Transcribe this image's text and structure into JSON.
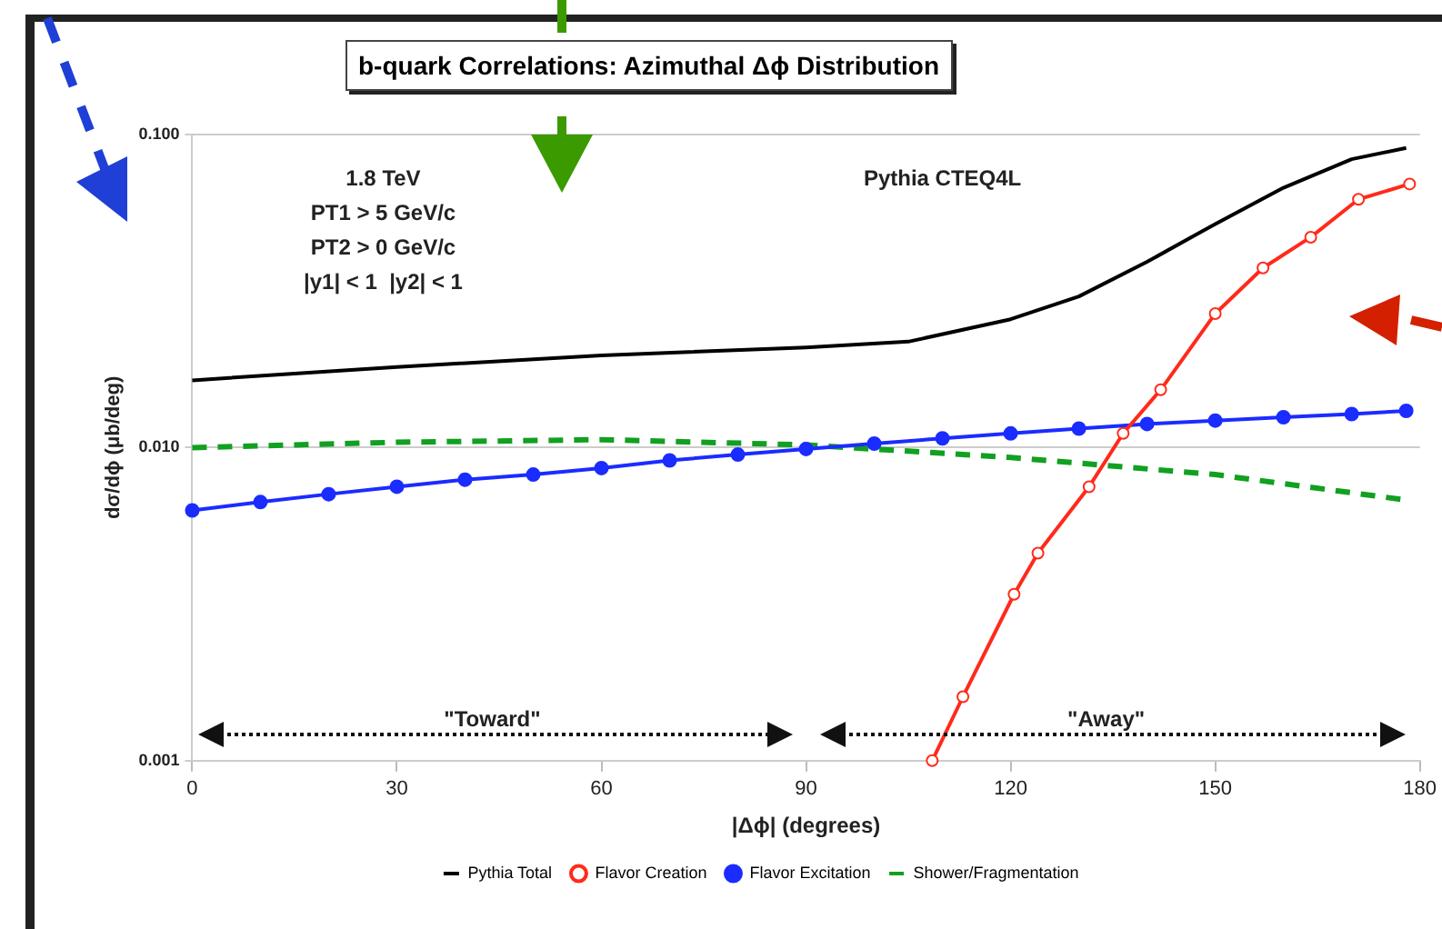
{
  "chart_data": {
    "type": "line",
    "title": "b-quark Correlations: Azimuthal Δϕ Distribution",
    "xlabel": "|Δϕ| (degrees)",
    "ylabel": "dσ/dϕ (μb/deg)",
    "xlim": [
      0,
      180
    ],
    "xticks": [
      0,
      30,
      60,
      90,
      120,
      150,
      180
    ],
    "ylim": [
      0.001,
      0.1
    ],
    "yticks": [
      {
        "value": 0.001,
        "label": "0.001"
      },
      {
        "value": 0.01,
        "label": "0.010"
      },
      {
        "value": 0.1,
        "label": "0.100"
      }
    ],
    "log": "y",
    "grid": "y",
    "legend": "bottom",
    "annotations": [
      "1.8 TeV\nPT1 > 5 GeV/c\nPT2 > 0 GeV/c\n|y1| < 1  |y2| < 1",
      "Pythia CTEQ4L",
      "\"Toward\"",
      "\"Away\""
    ],
    "series": [
      {
        "name": "Pythia Total",
        "color": "#000000",
        "marker": "none",
        "line_style": "solid",
        "x": [
          0,
          30,
          60,
          90,
          105,
          120,
          130,
          140,
          150,
          160,
          170,
          178
        ],
        "values": [
          0.0164,
          0.0181,
          0.0197,
          0.0209,
          0.0218,
          0.0257,
          0.0304,
          0.0392,
          0.0518,
          0.0676,
          0.0834,
          0.0906
        ]
      },
      {
        "name": "Flavor Creation",
        "color": "#ff2a1a",
        "marker": "circle",
        "line_style": "solid",
        "x": [
          108.5,
          113,
          120.5,
          124,
          131.5,
          136.5,
          142,
          150,
          157,
          164,
          171,
          178.5
        ],
        "values": [
          0.001,
          0.0016,
          0.0034,
          0.0046,
          0.0075,
          0.0111,
          0.0153,
          0.0268,
          0.0375,
          0.047,
          0.0621,
          0.0695
        ]
      },
      {
        "name": "Flavor Excitation",
        "color": "#1a2cff",
        "marker": "circle",
        "line_style": "solid",
        "x": [
          0,
          10,
          20,
          30,
          40,
          50,
          60,
          70,
          80,
          90,
          100,
          110,
          120,
          130,
          140,
          150,
          160,
          170,
          178
        ],
        "values": [
          0.0063,
          0.0067,
          0.0071,
          0.0075,
          0.0079,
          0.0082,
          0.0086,
          0.0091,
          0.0095,
          0.0099,
          0.0103,
          0.0107,
          0.0111,
          0.0115,
          0.0119,
          0.0122,
          0.0125,
          0.0128,
          0.0131
        ]
      },
      {
        "name": "Shower/Fragmentation",
        "color": "#11a020",
        "marker": "none",
        "line_style": "dashed",
        "x": [
          0,
          30,
          60,
          90,
          120,
          150,
          178
        ],
        "values": [
          0.01,
          0.0104,
          0.0106,
          0.0102,
          0.0093,
          0.0082,
          0.0068
        ]
      }
    ]
  }
}
